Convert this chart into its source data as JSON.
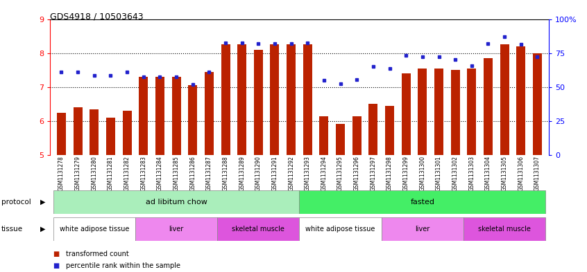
{
  "title": "GDS4918 / 10503643",
  "samples": [
    "GSM1131278",
    "GSM1131279",
    "GSM1131280",
    "GSM1131281",
    "GSM1131282",
    "GSM1131283",
    "GSM1131284",
    "GSM1131285",
    "GSM1131286",
    "GSM1131287",
    "GSM1131288",
    "GSM1131289",
    "GSM1131290",
    "GSM1131291",
    "GSM1131292",
    "GSM1131293",
    "GSM1131294",
    "GSM1131295",
    "GSM1131296",
    "GSM1131297",
    "GSM1131298",
    "GSM1131299",
    "GSM1131300",
    "GSM1131301",
    "GSM1131302",
    "GSM1131303",
    "GSM1131304",
    "GSM1131305",
    "GSM1131306",
    "GSM1131307"
  ],
  "red_values": [
    6.25,
    6.4,
    6.35,
    6.1,
    6.3,
    7.3,
    7.3,
    7.3,
    7.05,
    7.45,
    8.25,
    8.25,
    8.1,
    8.25,
    8.25,
    8.25,
    6.15,
    5.92,
    6.15,
    6.5,
    6.45,
    7.4,
    7.55,
    7.55,
    7.5,
    7.55,
    7.85,
    8.25,
    8.2,
    8.0
  ],
  "blue_values": [
    7.45,
    7.45,
    7.35,
    7.35,
    7.45,
    7.3,
    7.3,
    7.3,
    7.08,
    7.45,
    8.3,
    8.3,
    8.28,
    8.28,
    8.28,
    8.3,
    7.2,
    7.1,
    7.22,
    7.6,
    7.55,
    7.93,
    7.9,
    7.9,
    7.8,
    7.62,
    8.28,
    8.48,
    8.25,
    7.9
  ],
  "ylim": [
    5,
    9
  ],
  "yticks": [
    5,
    6,
    7,
    8,
    9
  ],
  "right_yticks_pct": [
    0,
    25,
    50,
    75,
    100
  ],
  "bar_color": "#bb2200",
  "dot_color": "#2222cc",
  "bg_color": "#ffffff",
  "protocol_groups": [
    {
      "label": "ad libitum chow",
      "start": 0,
      "end": 14,
      "color": "#aaeebb"
    },
    {
      "label": "fasted",
      "start": 15,
      "end": 29,
      "color": "#44ee66"
    }
  ],
  "tissue_groups": [
    {
      "label": "white adipose tissue",
      "start": 0,
      "end": 4,
      "color": "#ffffff"
    },
    {
      "label": "liver",
      "start": 5,
      "end": 9,
      "color": "#ee88ee"
    },
    {
      "label": "skeletal muscle",
      "start": 10,
      "end": 14,
      "color": "#dd55dd"
    },
    {
      "label": "white adipose tissue",
      "start": 15,
      "end": 19,
      "color": "#ffffff"
    },
    {
      "label": "liver",
      "start": 20,
      "end": 24,
      "color": "#ee88ee"
    },
    {
      "label": "skeletal muscle",
      "start": 25,
      "end": 29,
      "color": "#dd55dd"
    }
  ],
  "legend_red_label": "transformed count",
  "legend_blue_label": "percentile rank within the sample"
}
